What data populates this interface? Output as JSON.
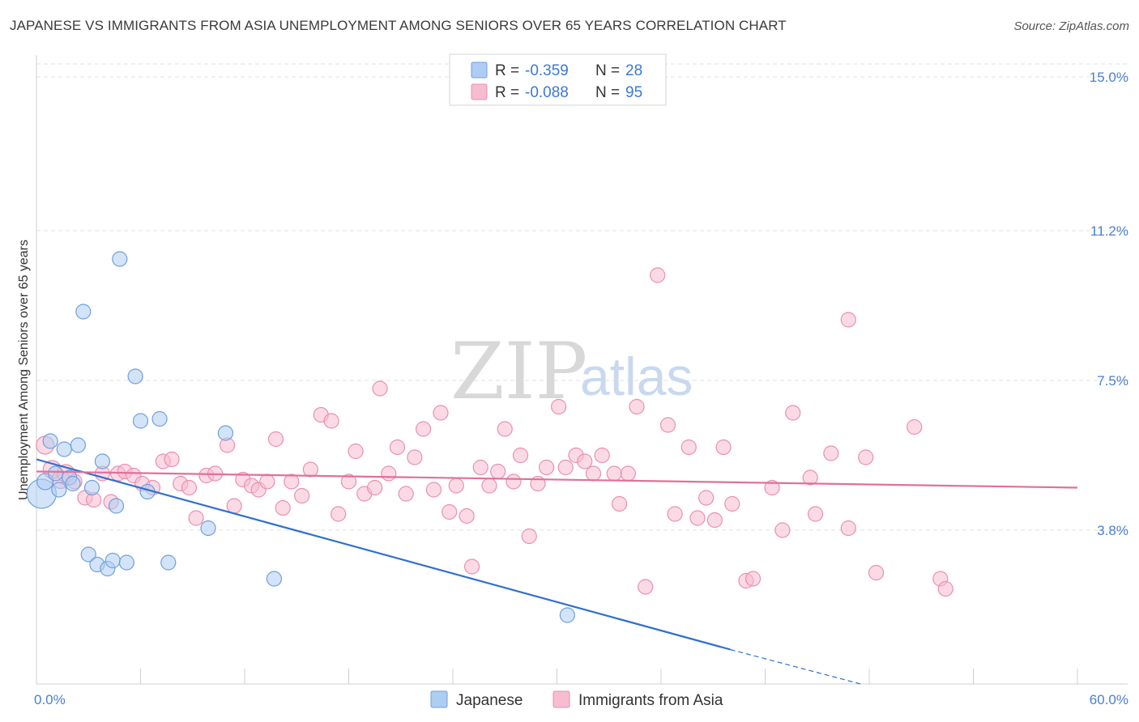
{
  "header": {
    "title": "JAPANESE VS IMMIGRANTS FROM ASIA UNEMPLOYMENT AMONG SENIORS OVER 65 YEARS CORRELATION CHART",
    "source": "Source: ZipAtlas.com"
  },
  "watermark": {
    "zip": "ZIP",
    "atlas": "atlas"
  },
  "legend_box": {
    "rows": [
      {
        "r_label": "R =",
        "r_value": "-0.359",
        "n_label": "N =",
        "n_value": "28",
        "color": "#aecdf2"
      },
      {
        "r_label": "R =",
        "r_value": "-0.088",
        "n_label": "N =",
        "n_value": "95",
        "color": "#f7bcd0"
      }
    ]
  },
  "bottom_legend": {
    "items": [
      {
        "label": "Japanese",
        "color": "#aecdf2"
      },
      {
        "label": "Immigrants from Asia",
        "color": "#f7bcd0"
      }
    ]
  },
  "chart_data": {
    "type": "scatter",
    "title": "JAPANESE VS IMMIGRANTS FROM ASIA UNEMPLOYMENT AMONG SENIORS OVER 65 YEARS CORRELATION CHART",
    "xlabel": "",
    "ylabel": "Unemployment Among Seniors over 65 years",
    "xlim": [
      0,
      60
    ],
    "ylim": [
      0,
      15.7
    ],
    "x_tick_labels": [
      "0.0%",
      "60.0%"
    ],
    "y_ticks": [
      3.8,
      7.5,
      11.2,
      15.0
    ],
    "y_tick_labels": [
      "3.8%",
      "7.5%",
      "11.2%",
      "15.0%"
    ],
    "grid": true,
    "legend_position": "top-center",
    "series": [
      {
        "name": "Japanese",
        "color": "#aecdf2",
        "stroke": "#6f9fdb",
        "trend_color": "#2f6fcf",
        "trend": {
          "x0": 0,
          "y0": 5.55,
          "x1": 40,
          "y1": 0.85,
          "dash_to_x": 47.5,
          "dash_to_y": 0.0
        },
        "points": [
          [
            0.3,
            4.7,
            18
          ],
          [
            0.5,
            5.0,
            10
          ],
          [
            0.8,
            6.0,
            9
          ],
          [
            1.1,
            5.2,
            9
          ],
          [
            1.3,
            4.8,
            9
          ],
          [
            1.6,
            5.8,
            9
          ],
          [
            1.9,
            5.1,
            9
          ],
          [
            2.1,
            4.95,
            9
          ],
          [
            2.4,
            5.9,
            9
          ],
          [
            2.7,
            9.2,
            9
          ],
          [
            3.0,
            3.2,
            9
          ],
          [
            3.2,
            4.85,
            9
          ],
          [
            3.5,
            2.95,
            9
          ],
          [
            3.8,
            5.5,
            9
          ],
          [
            4.1,
            2.85,
            9
          ],
          [
            4.4,
            3.05,
            9
          ],
          [
            4.6,
            4.4,
            9
          ],
          [
            4.8,
            10.5,
            9
          ],
          [
            5.2,
            3.0,
            9
          ],
          [
            5.7,
            7.6,
            9
          ],
          [
            6.0,
            6.5,
            9
          ],
          [
            6.4,
            4.75,
            9
          ],
          [
            7.1,
            6.55,
            9
          ],
          [
            7.6,
            3.0,
            9
          ],
          [
            9.9,
            3.85,
            9
          ],
          [
            10.9,
            6.2,
            9
          ],
          [
            13.7,
            2.6,
            9
          ],
          [
            30.6,
            1.7,
            9
          ]
        ]
      },
      {
        "name": "Immigrants from Asia",
        "color": "#f7bcd0",
        "stroke": "#e98fb0",
        "trend_color": "#e0709a",
        "trend": {
          "x0": 0,
          "y0": 5.25,
          "x1": 60,
          "y1": 4.85
        },
        "points": [
          [
            0.5,
            5.9,
            11
          ],
          [
            0.9,
            5.3,
            11
          ],
          [
            1.4,
            5.05,
            11
          ],
          [
            1.7,
            5.2,
            11
          ],
          [
            2.2,
            5.0,
            9
          ],
          [
            2.8,
            4.6,
            9
          ],
          [
            3.3,
            4.55,
            9
          ],
          [
            3.8,
            5.2,
            9
          ],
          [
            4.3,
            4.5,
            9
          ],
          [
            4.7,
            5.2,
            9
          ],
          [
            5.1,
            5.25,
            9
          ],
          [
            5.6,
            5.15,
            9
          ],
          [
            6.1,
            4.95,
            9
          ],
          [
            6.7,
            4.85,
            9
          ],
          [
            7.3,
            5.5,
            9
          ],
          [
            7.8,
            5.55,
            9
          ],
          [
            8.3,
            4.95,
            9
          ],
          [
            8.8,
            4.85,
            9
          ],
          [
            9.2,
            4.1,
            9
          ],
          [
            9.8,
            5.15,
            9
          ],
          [
            10.3,
            5.2,
            9
          ],
          [
            11.0,
            5.9,
            9
          ],
          [
            11.4,
            4.4,
            9
          ],
          [
            11.9,
            5.05,
            9
          ],
          [
            12.4,
            4.9,
            9
          ],
          [
            12.8,
            4.8,
            9
          ],
          [
            13.3,
            5.0,
            9
          ],
          [
            13.8,
            6.05,
            9
          ],
          [
            14.2,
            4.35,
            9
          ],
          [
            14.7,
            5.0,
            9
          ],
          [
            15.3,
            4.65,
            9
          ],
          [
            15.8,
            5.3,
            9
          ],
          [
            16.4,
            6.65,
            9
          ],
          [
            17.0,
            6.5,
            9
          ],
          [
            17.4,
            4.2,
            9
          ],
          [
            18.0,
            5.0,
            9
          ],
          [
            18.4,
            5.75,
            9
          ],
          [
            18.9,
            4.7,
            9
          ],
          [
            19.5,
            4.85,
            9
          ],
          [
            19.8,
            7.3,
            9
          ],
          [
            20.3,
            5.2,
            9
          ],
          [
            20.8,
            5.85,
            9
          ],
          [
            21.3,
            4.7,
            9
          ],
          [
            21.8,
            5.6,
            9
          ],
          [
            22.3,
            6.3,
            9
          ],
          [
            22.9,
            4.8,
            9
          ],
          [
            23.3,
            6.7,
            9
          ],
          [
            23.8,
            4.25,
            9
          ],
          [
            24.2,
            4.9,
            9
          ],
          [
            24.8,
            4.15,
            9
          ],
          [
            25.1,
            2.9,
            9
          ],
          [
            25.6,
            5.35,
            9
          ],
          [
            26.1,
            4.9,
            9
          ],
          [
            26.6,
            5.25,
            9
          ],
          [
            27.0,
            6.3,
            9
          ],
          [
            27.5,
            5.0,
            9
          ],
          [
            27.9,
            5.65,
            9
          ],
          [
            28.4,
            3.65,
            9
          ],
          [
            28.9,
            4.95,
            9
          ],
          [
            29.4,
            5.35,
            9
          ],
          [
            30.1,
            6.85,
            9
          ],
          [
            30.5,
            5.35,
            9
          ],
          [
            31.1,
            5.65,
            9
          ],
          [
            31.6,
            5.5,
            9
          ],
          [
            32.1,
            5.2,
            9
          ],
          [
            32.6,
            5.65,
            9
          ],
          [
            33.3,
            5.2,
            9
          ],
          [
            33.6,
            4.45,
            9
          ],
          [
            34.1,
            5.2,
            9
          ],
          [
            34.6,
            6.85,
            9
          ],
          [
            35.1,
            2.4,
            9
          ],
          [
            35.8,
            10.1,
            9
          ],
          [
            36.4,
            6.4,
            9
          ],
          [
            36.8,
            4.2,
            9
          ],
          [
            37.6,
            5.85,
            9
          ],
          [
            38.1,
            4.1,
            9
          ],
          [
            38.6,
            4.6,
            9
          ],
          [
            39.1,
            4.05,
            9
          ],
          [
            39.6,
            5.85,
            9
          ],
          [
            40.1,
            4.45,
            9
          ],
          [
            40.9,
            2.55,
            9
          ],
          [
            41.3,
            2.6,
            9
          ],
          [
            42.4,
            4.85,
            9
          ],
          [
            43.0,
            3.8,
            9
          ],
          [
            43.6,
            6.7,
            9
          ],
          [
            44.6,
            5.1,
            9
          ],
          [
            44.9,
            4.2,
            9
          ],
          [
            45.8,
            5.7,
            9
          ],
          [
            46.8,
            3.85,
            9
          ],
          [
            46.8,
            9.0,
            9
          ],
          [
            47.8,
            5.6,
            9
          ],
          [
            48.4,
            2.75,
            9
          ],
          [
            50.6,
            6.35,
            9
          ],
          [
            52.1,
            2.6,
            9
          ],
          [
            52.4,
            2.35,
            9
          ]
        ]
      }
    ]
  }
}
